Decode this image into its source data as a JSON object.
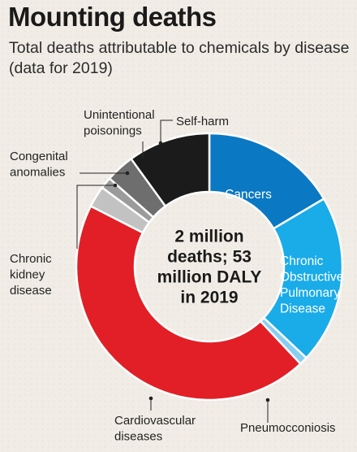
{
  "title": "Mounting deaths",
  "subtitle": "Total deaths attributable to chemicals by disease (data for 2019)",
  "chart_data": {
    "type": "pie",
    "variant": "donut",
    "center_label": [
      "2 million",
      "deaths; 53",
      "million DALY",
      "in 2019"
    ],
    "start_angle_deg": 0,
    "direction": "clockwise",
    "slices": [
      {
        "label": "Cancers",
        "value": 16.5,
        "color": "#0b78c4",
        "label_inside": true
      },
      {
        "label": "Chronic Obstructive Pulmonary Disease",
        "label_lines": [
          "Chronic",
          "Obstructive",
          "Pulmonary",
          "Disease"
        ],
        "value": 20.5,
        "color": "#1aabe9",
        "label_inside": true
      },
      {
        "label": "Pneumocconiosis",
        "value": 1.0,
        "color": "#88cef2",
        "label_inside": false
      },
      {
        "label": "Cardiovascular diseases",
        "label_lines": [
          "Cardiovascular",
          "diseases"
        ],
        "value": 44.5,
        "color": "#e21f26",
        "label_inside": false
      },
      {
        "label": "Chronic kidney disease",
        "label_lines": [
          "Chronic",
          "kidney",
          "disease"
        ],
        "value": 2.6,
        "color": "#c2c2c2",
        "label_inside": false
      },
      {
        "label": "Congenital anomalies",
        "label_lines": [
          "Congenital",
          "anomalies"
        ],
        "value": 1.4,
        "color": "#9b9b9b",
        "label_inside": false
      },
      {
        "label": "Unintentional poisonings",
        "label_lines": [
          "Unintentional",
          "poisonings"
        ],
        "value": 3.5,
        "color": "#6e6e6e",
        "label_inside": false
      },
      {
        "label": "Self-harm",
        "value": 10.0,
        "color": "#1b1b1b",
        "label_inside": false
      }
    ]
  }
}
